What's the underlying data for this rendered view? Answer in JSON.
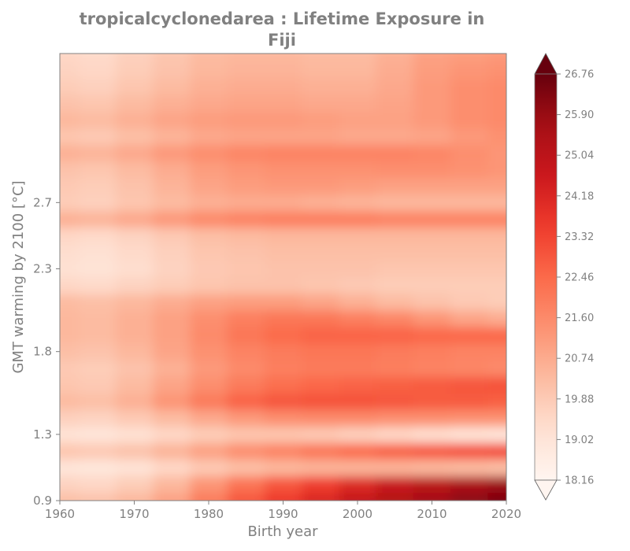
{
  "chart_data": {
    "type": "heatmap",
    "title_line1": "tropicalcyclonedarea : Lifetime Exposure in",
    "title_line2": "Fiji",
    "xlabel": "Birth year",
    "ylabel": "GMT warming by 2100 [°C]",
    "xlim": [
      1960,
      2020
    ],
    "ylim": [
      0.9,
      3.6
    ],
    "x_ticks": [
      1960,
      1970,
      1980,
      1990,
      2000,
      2010,
      2020
    ],
    "x_tick_labels": [
      "1960",
      "1970",
      "1980",
      "1990",
      "2000",
      "2010",
      "2020"
    ],
    "y_ticks": [
      0.9,
      1.3,
      1.8,
      2.3,
      2.7
    ],
    "y_tick_labels": [
      "0.9",
      "1.3",
      "1.8",
      "2.3",
      "2.7"
    ],
    "colorbar": {
      "colormap": "Reds",
      "extend": "both",
      "vmin": 18.16,
      "vmax": 26.76,
      "tick_labels": [
        "18.16",
        "19.02",
        "19.88",
        "20.74",
        "21.60",
        "22.46",
        "23.32",
        "24.18",
        "25.04",
        "25.90",
        "26.76"
      ]
    },
    "x_centers": [
      1960,
      1965,
      1970,
      1975,
      1980,
      1985,
      1990,
      1995,
      2000,
      2005,
      2010,
      2015,
      2020
    ],
    "y_centers": [
      0.9,
      1.0,
      1.1,
      1.2,
      1.3,
      1.4,
      1.5,
      1.6,
      1.7,
      1.8,
      1.9,
      2.0,
      2.1,
      2.2,
      2.3,
      2.4,
      2.5,
      2.6,
      2.7,
      2.8,
      2.9,
      3.0,
      3.1,
      3.2,
      3.3,
      3.4,
      3.5,
      3.6
    ],
    "values": [
      [
        20.2,
        20.1,
        20.4,
        21.0,
        22.0,
        22.9,
        23.6,
        24.2,
        24.8,
        25.3,
        25.7,
        26.1,
        26.4
      ],
      [
        19.6,
        19.5,
        19.8,
        20.4,
        21.3,
        22.2,
        22.9,
        23.5,
        24.1,
        24.7,
        25.1,
        25.5,
        25.8
      ],
      [
        19.0,
        18.9,
        19.1,
        19.5,
        19.9,
        20.2,
        20.4,
        20.5,
        20.5,
        20.5,
        20.4,
        20.3,
        20.2
      ],
      [
        20.0,
        19.9,
        20.1,
        20.5,
        21.0,
        21.5,
        21.8,
        22.1,
        22.4,
        22.7,
        22.9,
        23.1,
        23.2
      ],
      [
        19.1,
        19.0,
        19.2,
        19.5,
        19.8,
        20.0,
        20.0,
        19.9,
        19.7,
        19.5,
        19.3,
        19.1,
        19.0
      ],
      [
        19.7,
        19.6,
        19.9,
        20.3,
        20.8,
        21.2,
        21.5,
        21.6,
        21.6,
        21.5,
        21.5,
        21.4,
        21.4
      ],
      [
        20.3,
        20.2,
        20.6,
        21.3,
        22.0,
        22.6,
        22.9,
        23.0,
        23.0,
        22.9,
        22.8,
        22.8,
        22.7
      ],
      [
        20.0,
        19.9,
        20.3,
        20.9,
        21.5,
        22.0,
        22.3,
        22.5,
        22.6,
        22.7,
        22.8,
        22.9,
        23.0
      ],
      [
        19.9,
        19.8,
        20.1,
        20.6,
        21.2,
        21.6,
        21.9,
        22.0,
        22.0,
        21.9,
        21.8,
        21.7,
        21.6
      ],
      [
        20.2,
        20.1,
        20.4,
        20.9,
        21.4,
        21.8,
        22.0,
        22.1,
        22.1,
        22.0,
        21.9,
        21.8,
        21.8
      ],
      [
        20.4,
        20.3,
        20.6,
        21.0,
        21.6,
        22.1,
        22.4,
        22.6,
        22.6,
        22.6,
        22.5,
        22.5,
        22.5
      ],
      [
        20.4,
        20.3,
        20.6,
        21.0,
        21.5,
        21.9,
        22.1,
        22.1,
        21.9,
        21.7,
        21.3,
        20.9,
        20.7
      ],
      [
        20.3,
        20.2,
        20.4,
        20.7,
        21.0,
        21.1,
        21.1,
        20.9,
        20.6,
        20.3,
        20.1,
        19.9,
        19.8
      ],
      [
        19.5,
        19.4,
        19.6,
        19.8,
        20.0,
        20.1,
        20.1,
        20.0,
        19.9,
        19.8,
        19.8,
        19.8,
        19.8
      ],
      [
        19.2,
        19.1,
        19.3,
        19.6,
        19.9,
        20.0,
        20.1,
        20.1,
        20.1,
        20.0,
        20.0,
        20.0,
        20.0
      ],
      [
        19.3,
        19.2,
        19.4,
        19.7,
        20.0,
        20.1,
        20.2,
        20.2,
        20.2,
        20.2,
        20.2,
        20.2,
        20.2
      ],
      [
        19.5,
        19.4,
        19.6,
        19.9,
        20.2,
        20.3,
        20.4,
        20.4,
        20.4,
        20.4,
        20.4,
        20.4,
        20.4
      ],
      [
        20.6,
        20.5,
        20.8,
        21.2,
        21.6,
        21.8,
        21.9,
        21.9,
        21.9,
        21.8,
        21.8,
        21.8,
        21.8
      ],
      [
        19.8,
        19.7,
        20.0,
        20.3,
        20.6,
        20.7,
        20.7,
        20.6,
        20.5,
        20.4,
        20.4,
        20.4,
        20.4
      ],
      [
        19.9,
        19.8,
        20.1,
        20.5,
        20.9,
        21.1,
        21.2,
        21.2,
        21.1,
        21.0,
        21.0,
        21.0,
        21.0
      ],
      [
        20.1,
        20.0,
        20.3,
        20.7,
        21.1,
        21.3,
        21.4,
        21.4,
        21.4,
        21.5,
        21.5,
        21.4,
        21.3
      ],
      [
        20.6,
        20.5,
        20.8,
        21.2,
        21.5,
        21.7,
        21.8,
        21.8,
        21.8,
        21.8,
        21.7,
        21.5,
        21.3
      ],
      [
        20.0,
        19.9,
        20.2,
        20.5,
        20.8,
        20.9,
        20.9,
        20.9,
        20.8,
        20.8,
        20.9,
        21.2,
        21.4
      ],
      [
        20.4,
        20.3,
        20.6,
        20.9,
        21.1,
        21.2,
        21.2,
        21.1,
        21.0,
        21.0,
        21.2,
        21.5,
        21.6
      ],
      [
        20.1,
        20.0,
        20.3,
        20.6,
        20.8,
        20.9,
        20.9,
        20.8,
        20.8,
        20.9,
        21.2,
        21.5,
        21.6
      ],
      [
        19.8,
        19.7,
        20.0,
        20.3,
        20.6,
        20.7,
        20.7,
        20.6,
        20.6,
        20.8,
        21.2,
        21.5,
        21.6
      ],
      [
        19.6,
        19.5,
        19.8,
        20.1,
        20.4,
        20.5,
        20.5,
        20.4,
        20.4,
        20.7,
        21.1,
        21.3,
        21.4
      ],
      [
        19.5,
        19.4,
        19.7,
        20.0,
        20.3,
        20.4,
        20.4,
        20.3,
        20.3,
        20.6,
        21.0,
        21.1,
        21.2
      ]
    ]
  }
}
